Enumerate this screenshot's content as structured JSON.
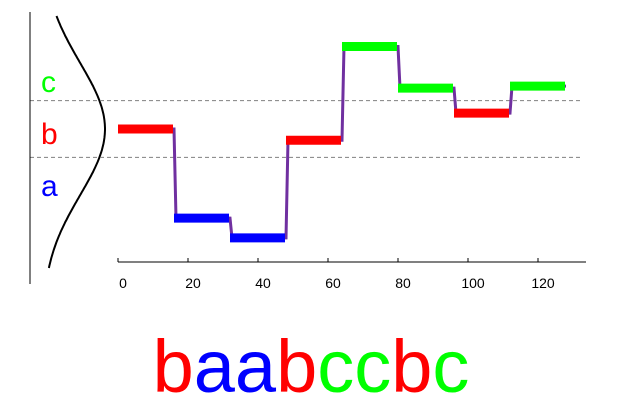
{
  "chart_data": {
    "type": "line",
    "title": "",
    "xlabel": "",
    "ylabel": "",
    "x_ticks": [
      "0",
      "20",
      "40",
      "60",
      "80",
      "100",
      "120"
    ],
    "xlim": [
      0,
      130
    ],
    "ylim": [
      -3.5,
      2.6
    ],
    "breakpoints": [
      -0.43,
      0.43
    ],
    "regions": [
      {
        "label": "c",
        "color": "#00ff00"
      },
      {
        "label": "b",
        "color": "#ff0000"
      },
      {
        "label": "a",
        "color": "#0000ff"
      }
    ],
    "segments": [
      {
        "x_start": 0,
        "x_end": 16,
        "value": 0.0,
        "symbol": "b"
      },
      {
        "x_start": 16,
        "x_end": 32,
        "value": -1.35,
        "symbol": "a"
      },
      {
        "x_start": 32,
        "x_end": 48,
        "value": -1.65,
        "symbol": "a"
      },
      {
        "x_start": 48,
        "x_end": 64,
        "value": -0.17,
        "symbol": "b"
      },
      {
        "x_start": 64,
        "x_end": 80,
        "value": 1.25,
        "symbol": "c"
      },
      {
        "x_start": 80,
        "x_end": 96,
        "value": 0.62,
        "symbol": "c"
      },
      {
        "x_start": 96,
        "x_end": 112,
        "value": 0.24,
        "symbol": "b"
      },
      {
        "x_start": 112,
        "x_end": 128,
        "value": 0.65,
        "symbol": "c"
      }
    ],
    "line_color": "#7030a0",
    "symbol_string": [
      "b",
      "a",
      "a",
      "b",
      "c",
      "c",
      "b",
      "c"
    ]
  },
  "colors": {
    "a": "#0000ff",
    "b": "#ff0000",
    "c": "#00ff00",
    "axis": "#000000",
    "breakpoint": "#808080"
  }
}
